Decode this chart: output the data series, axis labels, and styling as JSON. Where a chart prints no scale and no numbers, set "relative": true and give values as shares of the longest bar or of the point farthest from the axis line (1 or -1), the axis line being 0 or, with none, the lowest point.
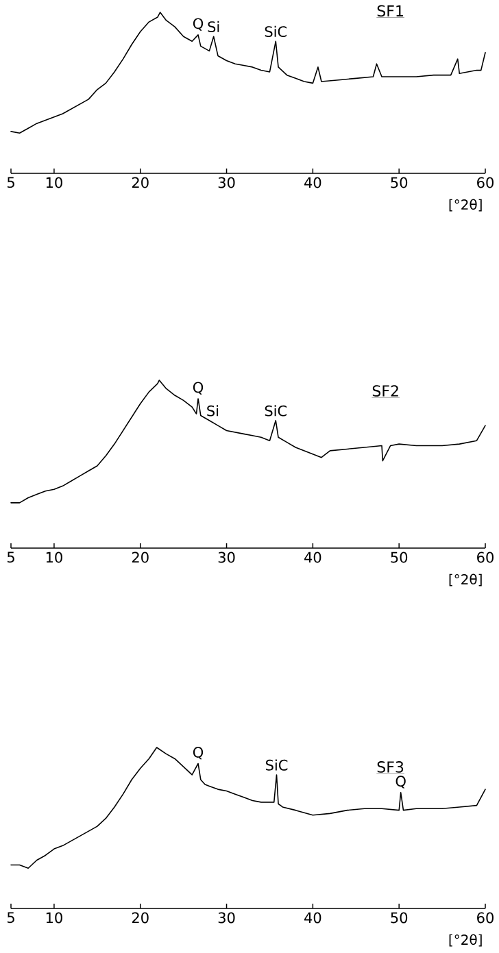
{
  "chart_data": [
    {
      "type": "line",
      "relative": true,
      "title": "SF1",
      "xlabel": "[°2θ]",
      "color": "#000000",
      "xlim": [
        5,
        60
      ],
      "xticks": [
        5,
        10,
        20,
        30,
        40,
        50,
        60
      ],
      "x": [
        5,
        6,
        7,
        8,
        9,
        10,
        11,
        12,
        13,
        14,
        15,
        16,
        17,
        18,
        19,
        20,
        21,
        22,
        22.3,
        23,
        24,
        25,
        26,
        26.7,
        27,
        28,
        28.5,
        29,
        30,
        31,
        32,
        33,
        34,
        35,
        35.7,
        36,
        37,
        38,
        39,
        40,
        40.6,
        41,
        43,
        45,
        47,
        47.4,
        48,
        50,
        52,
        54,
        56,
        56.8,
        57,
        59,
        59.5,
        60
      ],
      "values": [
        0.26,
        0.25,
        0.28,
        0.31,
        0.33,
        0.35,
        0.37,
        0.4,
        0.43,
        0.46,
        0.52,
        0.56,
        0.63,
        0.71,
        0.8,
        0.88,
        0.94,
        0.97,
        1.0,
        0.95,
        0.91,
        0.85,
        0.82,
        0.86,
        0.79,
        0.76,
        0.85,
        0.73,
        0.7,
        0.68,
        0.67,
        0.66,
        0.64,
        0.63,
        0.82,
        0.66,
        0.61,
        0.59,
        0.57,
        0.56,
        0.66,
        0.57,
        0.58,
        0.59,
        0.6,
        0.68,
        0.6,
        0.6,
        0.6,
        0.61,
        0.61,
        0.71,
        0.62,
        0.64,
        0.64,
        0.75
      ],
      "annotations": [
        {
          "text": "Q",
          "x": 26.7,
          "y": 0.86
        },
        {
          "text": "Si",
          "x": 28.5,
          "y": 0.85
        },
        {
          "text": "SiC",
          "x": 35.7,
          "y": 0.82
        }
      ]
    },
    {
      "type": "line",
      "relative": true,
      "title": "SF2",
      "xlabel": "[°2θ]",
      "color": "#000000",
      "xlim": [
        5,
        60
      ],
      "xticks": [
        5,
        10,
        20,
        30,
        40,
        50,
        60
      ],
      "x": [
        5,
        6,
        7,
        8,
        9,
        10,
        11,
        12,
        13,
        14,
        15,
        16,
        17,
        18,
        19,
        20,
        21,
        22,
        22.2,
        23,
        24,
        25,
        26,
        26.5,
        26.7,
        27,
        28,
        29,
        30,
        31,
        32,
        33,
        34,
        35,
        35.7,
        36,
        37,
        38,
        39,
        40,
        41,
        42,
        44,
        46,
        48,
        48.1,
        49,
        50,
        52,
        55,
        57,
        59,
        60
      ],
      "values": [
        0.27,
        0.27,
        0.3,
        0.32,
        0.34,
        0.35,
        0.37,
        0.4,
        0.43,
        0.46,
        0.49,
        0.55,
        0.62,
        0.7,
        0.78,
        0.86,
        0.93,
        0.98,
        1.0,
        0.95,
        0.91,
        0.88,
        0.84,
        0.8,
        0.89,
        0.79,
        0.76,
        0.73,
        0.7,
        0.69,
        0.68,
        0.67,
        0.66,
        0.64,
        0.76,
        0.66,
        0.63,
        0.6,
        0.58,
        0.56,
        0.54,
        0.58,
        0.59,
        0.6,
        0.61,
        0.52,
        0.61,
        0.62,
        0.61,
        0.61,
        0.62,
        0.64,
        0.73
      ],
      "annotations": [
        {
          "text": "Q",
          "x": 26.7,
          "y": 0.89
        },
        {
          "text": "Si",
          "x": 28.4,
          "y": 0.76
        },
        {
          "text": "SiC",
          "x": 35.7,
          "y": 0.76
        }
      ]
    },
    {
      "type": "line",
      "relative": true,
      "title": "SF3",
      "xlabel": "[°2θ]",
      "color": "#000000",
      "xlim": [
        5,
        60
      ],
      "xticks": [
        5,
        10,
        20,
        30,
        40,
        50,
        60
      ],
      "x": [
        5,
        6,
        7,
        8,
        9,
        10,
        11,
        12,
        13,
        14,
        15,
        16,
        17,
        18,
        19,
        20,
        21,
        21.9,
        23,
        24,
        25,
        26,
        26.7,
        27,
        27.5,
        28,
        29,
        30,
        31,
        32,
        33,
        34,
        35.5,
        35.8,
        36,
        36.5,
        38,
        40,
        42,
        44,
        46,
        48,
        50,
        50.2,
        50.5,
        52,
        55,
        57,
        59,
        60
      ],
      "values": [
        0.27,
        0.27,
        0.25,
        0.3,
        0.33,
        0.37,
        0.39,
        0.42,
        0.45,
        0.48,
        0.51,
        0.56,
        0.63,
        0.71,
        0.8,
        0.87,
        0.93,
        1.0,
        0.96,
        0.93,
        0.88,
        0.83,
        0.9,
        0.8,
        0.77,
        0.76,
        0.74,
        0.73,
        0.71,
        0.69,
        0.67,
        0.66,
        0.66,
        0.83,
        0.65,
        0.63,
        0.61,
        0.58,
        0.59,
        0.61,
        0.62,
        0.62,
        0.61,
        0.72,
        0.61,
        0.62,
        0.62,
        0.63,
        0.64,
        0.74
      ],
      "annotations": [
        {
          "text": "Q",
          "x": 26.7,
          "y": 0.9
        },
        {
          "text": "SiC",
          "x": 35.8,
          "y": 0.83
        },
        {
          "text": "Q",
          "x": 50.2,
          "y": 0.72
        }
      ]
    }
  ]
}
